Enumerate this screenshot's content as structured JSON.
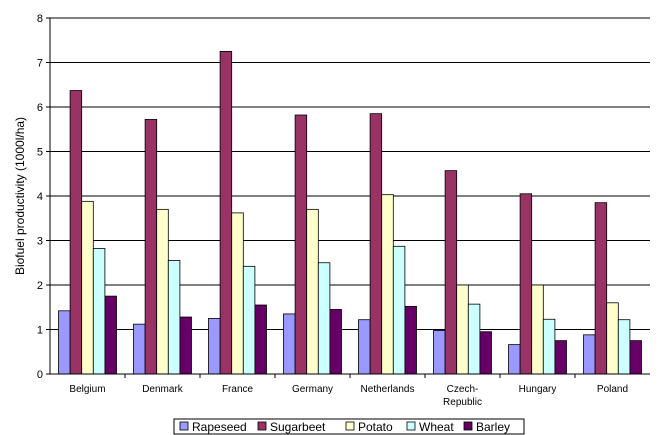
{
  "chart_data": {
    "type": "bar",
    "title": "",
    "xlabel": "",
    "ylabel": "Biofuel productivity (1000l/ha)",
    "ylim": [
      0,
      8
    ],
    "yticks": [
      0,
      1,
      2,
      3,
      4,
      5,
      6,
      7,
      8
    ],
    "grid": true,
    "legend_position": "bottom",
    "categories": [
      [
        "Belgium"
      ],
      [
        "Denmark"
      ],
      [
        "France"
      ],
      [
        "Germany"
      ],
      [
        "Netherlands"
      ],
      [
        "Czech-",
        "Republic"
      ],
      [
        "Hungary"
      ],
      [
        "Poland"
      ]
    ],
    "series": [
      {
        "name": "Rapeseed",
        "color": "#9999ff",
        "values": [
          1.42,
          1.12,
          1.25,
          1.35,
          1.22,
          0.98,
          0.66,
          0.88
        ]
      },
      {
        "name": "Sugarbeet",
        "color": "#993366",
        "values": [
          6.37,
          5.72,
          7.25,
          5.82,
          5.85,
          4.57,
          4.05,
          3.85
        ]
      },
      {
        "name": "Potato",
        "color": "#ffffcc",
        "values": [
          3.88,
          3.7,
          3.62,
          3.7,
          4.03,
          2.0,
          2.0,
          1.6
        ]
      },
      {
        "name": "Wheat",
        "color": "#ccffff",
        "values": [
          2.82,
          2.55,
          2.42,
          2.5,
          2.87,
          1.57,
          1.23,
          1.22
        ]
      },
      {
        "name": "Barley",
        "color": "#660066",
        "values": [
          1.75,
          1.28,
          1.55,
          1.45,
          1.52,
          0.95,
          0.75,
          0.75
        ]
      }
    ]
  }
}
